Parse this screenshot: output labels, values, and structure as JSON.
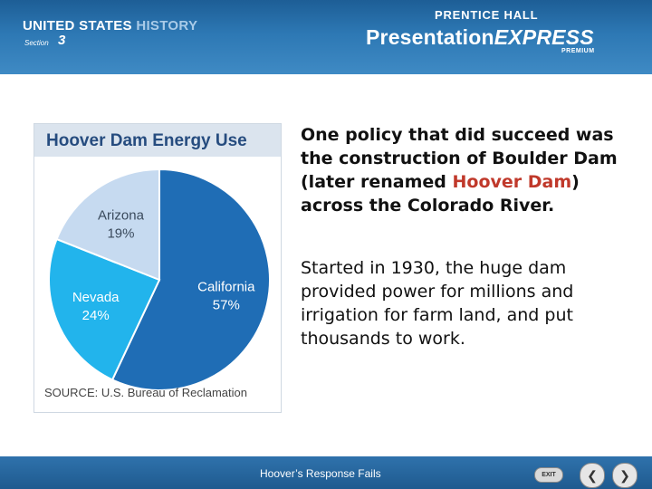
{
  "header": {
    "brand_part1": "UNITED STATES",
    "brand_part2": "HISTORY",
    "section_label": "Section",
    "section_number": "3",
    "publisher": "PRENTICE HALL",
    "product_part1": "Presentation",
    "product_part2": "EXPRESS",
    "product_tier": "PREMIUM",
    "colors": {
      "header_blue": "#2d78b4",
      "header_dark": "#1d5e96"
    }
  },
  "chart": {
    "title": "Hoover Dam Energy Use",
    "source": "SOURCE: U.S. Bureau of Reclamation"
  },
  "chart_data": {
    "type": "pie",
    "title": "Hoover Dam Energy Use",
    "slices": [
      {
        "label": "California",
        "value": 57,
        "display": "57%",
        "color": "#1f6db5"
      },
      {
        "label": "Nevada",
        "value": 24,
        "display": "24%",
        "color": "#22b4ec"
      },
      {
        "label": "Arizona",
        "value": 19,
        "display": "19%",
        "color": "#c6daf0"
      }
    ],
    "source": "SOURCE: U.S. Bureau of Reclamation"
  },
  "content": {
    "para1_before": "One policy that did succeed was the construction of Boulder Dam (later renamed ",
    "para1_highlight": "Hoover Dam",
    "para1_after": ") across the Colorado River.",
    "para2": "Started in 1930, the huge dam provided power for millions and irrigation for farm land, and put thousands to work.",
    "highlight_color": "#c0392b"
  },
  "footer": {
    "title": "Hoover’s Response Fails",
    "exit_label": "EXIT",
    "prev_icon": "chevron-left-icon",
    "next_icon": "chevron-right-icon"
  }
}
